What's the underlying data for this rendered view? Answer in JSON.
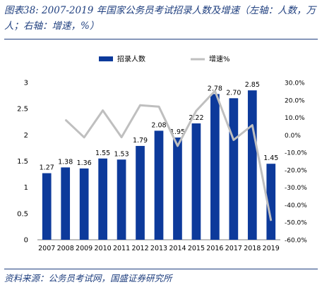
{
  "title": "图表38: 2007-2019 年国家公务员考试招录人数及增速（左轴：人数，万人；右轴：增速，%）",
  "source": "资料来源：公务员考试网，国盛证券研究所",
  "chart_data": {
    "type": "bar+line",
    "categories": [
      "2007",
      "2008",
      "2009",
      "2010",
      "2011",
      "2012",
      "2013",
      "2014",
      "2015",
      "2016",
      "2017",
      "2018",
      "2019"
    ],
    "series": [
      {
        "name": "招录人数",
        "type": "bar",
        "axis": "left",
        "color": "#0d3a9b",
        "values": [
          1.27,
          1.38,
          1.36,
          1.55,
          1.53,
          1.79,
          2.08,
          1.95,
          2.22,
          2.78,
          2.7,
          2.85,
          1.45
        ],
        "labels": [
          "1.27",
          "1.38",
          "1.36",
          "1.55",
          "1.53",
          "1.79",
          "2.08",
          "1.95",
          "2.22",
          "2.78",
          "2.70",
          "2.85",
          "1.45"
        ]
      },
      {
        "name": "增速%",
        "type": "line",
        "axis": "right",
        "color": "#bfbfbf",
        "values": [
          null,
          8.7,
          -1.4,
          14.0,
          -1.3,
          17.0,
          16.2,
          -6.3,
          13.8,
          25.2,
          -2.9,
          5.6,
          -49.1
        ]
      }
    ],
    "ylim_left": [
      0,
      3
    ],
    "yticks_left": [
      "0",
      "0.5",
      "1",
      "1.5",
      "2",
      "2.5",
      "3"
    ],
    "ylim_right": [
      -60,
      30
    ],
    "yticks_right": [
      "-60.0%",
      "-50.0%",
      "-40.0%",
      "-30.0%",
      "-20.0%",
      "-10.0%",
      "0.0%",
      "10.0%",
      "20.0%",
      "30.0%"
    ],
    "legend_position": "top",
    "grid": false
  }
}
